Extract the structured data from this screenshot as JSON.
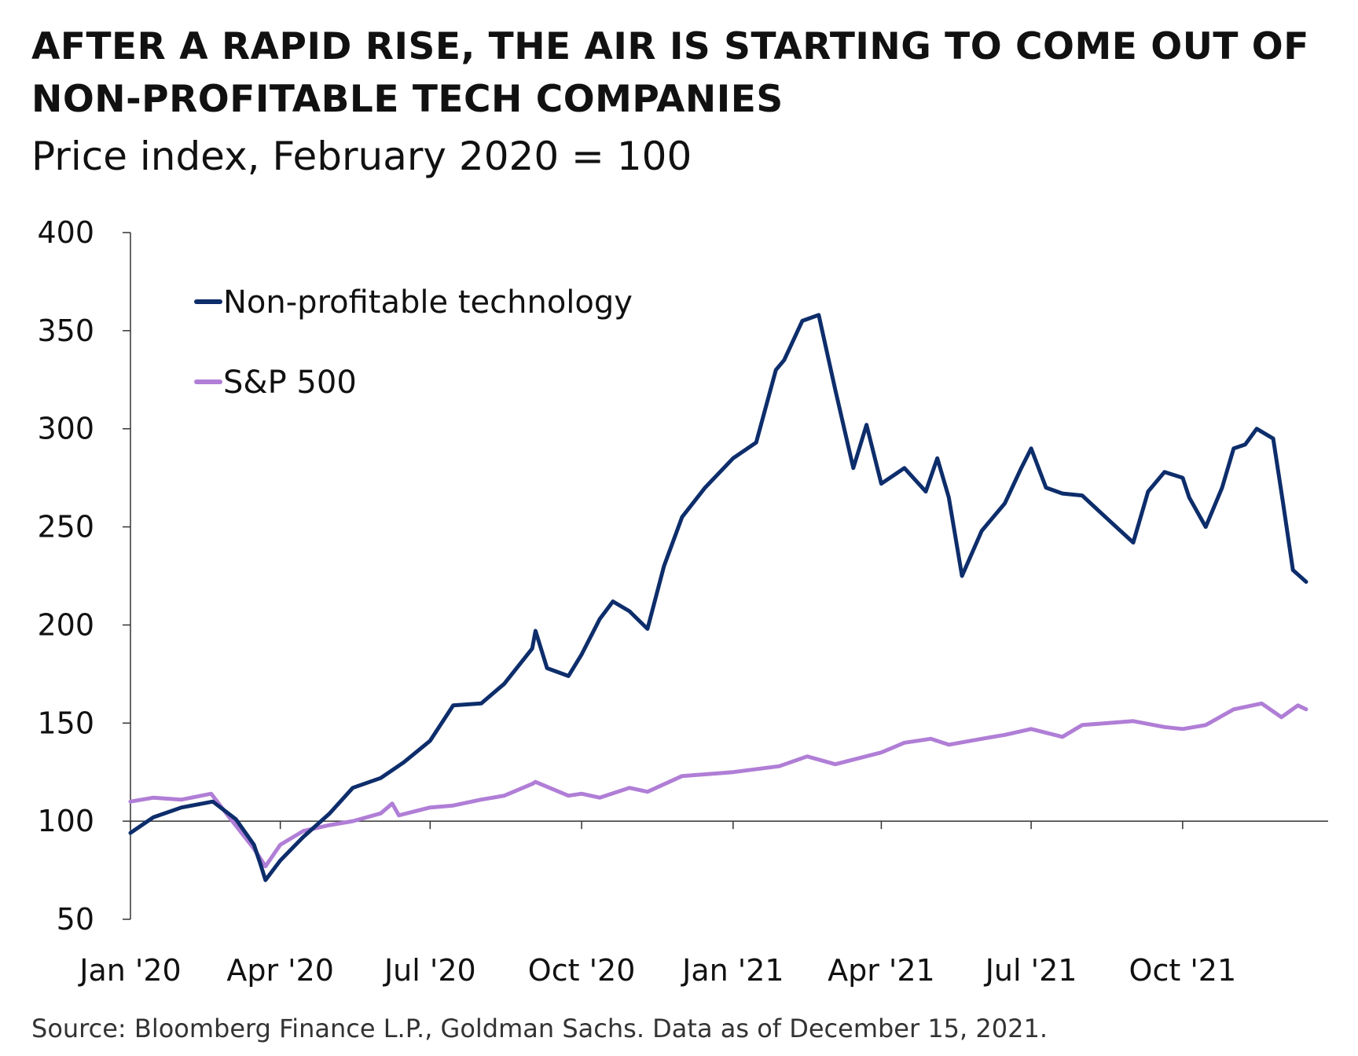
{
  "header": {
    "title": "AFTER A RAPID RISE, THE AIR IS STARTING TO COME OUT OF NON-PROFITABLE TECH COMPANIES",
    "subtitle": "Price index, February 2020 = 100"
  },
  "footer": {
    "source": "Source: Bloomberg Finance L.P., Goldman Sachs. Data as of December 15, 2021."
  },
  "colors": {
    "non_profitable": "#0d2d6b",
    "sp500": "#b07ed6",
    "axis": "#333333"
  },
  "chart_data": {
    "type": "line",
    "title": "AFTER A RAPID RISE, THE AIR IS STARTING TO COME OUT OF NON-PROFITABLE TECH COMPANIES",
    "subtitle": "Price index, February 2020 = 100",
    "xlabel": "",
    "ylabel": "",
    "ylim": [
      50,
      400
    ],
    "yticks": [
      50,
      100,
      150,
      200,
      250,
      300,
      350,
      400
    ],
    "xlim": [
      "2020-01-01",
      "2021-12-15"
    ],
    "xticks": [
      {
        "date": "2020-01-01",
        "label": "Jan '20"
      },
      {
        "date": "2020-04-01",
        "label": "Apr '20"
      },
      {
        "date": "2020-07-01",
        "label": "Jul '20"
      },
      {
        "date": "2020-10-01",
        "label": "Oct '20"
      },
      {
        "date": "2021-01-01",
        "label": "Jan '21"
      },
      {
        "date": "2021-04-01",
        "label": "Apr '21"
      },
      {
        "date": "2021-07-01",
        "label": "Jul '21"
      },
      {
        "date": "2021-10-01",
        "label": "Oct '21"
      }
    ],
    "grid": false,
    "legend": "top-left",
    "series": [
      {
        "name": "Non-profitable technology",
        "x": [
          "2020-01-01",
          "2020-01-15",
          "2020-02-01",
          "2020-02-20",
          "2020-03-05",
          "2020-03-16",
          "2020-03-20",
          "2020-03-23",
          "2020-04-01",
          "2020-04-15",
          "2020-05-01",
          "2020-05-15",
          "2020-06-01",
          "2020-06-15",
          "2020-07-01",
          "2020-07-15",
          "2020-08-01",
          "2020-08-15",
          "2020-09-01",
          "2020-09-03",
          "2020-09-10",
          "2020-09-23",
          "2020-10-01",
          "2020-10-12",
          "2020-10-20",
          "2020-10-30",
          "2020-11-10",
          "2020-11-20",
          "2020-12-01",
          "2020-12-15",
          "2021-01-01",
          "2021-01-15",
          "2021-01-27",
          "2021-02-01",
          "2021-02-12",
          "2021-02-22",
          "2021-03-04",
          "2021-03-15",
          "2021-03-23",
          "2021-04-01",
          "2021-04-15",
          "2021-04-28",
          "2021-05-05",
          "2021-05-12",
          "2021-05-20",
          "2021-06-01",
          "2021-06-15",
          "2021-06-25",
          "2021-07-01",
          "2021-07-10",
          "2021-07-20",
          "2021-08-01",
          "2021-08-19",
          "2021-09-01",
          "2021-09-10",
          "2021-09-20",
          "2021-10-01",
          "2021-10-05",
          "2021-10-15",
          "2021-10-25",
          "2021-11-01",
          "2021-11-08",
          "2021-11-15",
          "2021-11-25",
          "2021-12-01",
          "2021-12-07",
          "2021-12-15"
        ],
        "values": [
          94,
          102,
          107,
          110,
          101,
          88,
          78,
          70,
          80,
          92,
          104,
          117,
          122,
          130,
          141,
          159,
          160,
          170,
          188,
          197,
          178,
          174,
          185,
          203,
          212,
          207,
          198,
          230,
          255,
          270,
          285,
          293,
          330,
          335,
          355,
          358,
          320,
          280,
          302,
          272,
          280,
          268,
          285,
          265,
          225,
          248,
          262,
          280,
          290,
          270,
          267,
          266,
          252,
          242,
          268,
          278,
          275,
          265,
          250,
          270,
          290,
          292,
          300,
          295,
          262,
          228,
          222
        ]
      },
      {
        "name": "S&P 500",
        "x": [
          "2020-01-01",
          "2020-01-15",
          "2020-02-01",
          "2020-02-19",
          "2020-03-01",
          "2020-03-16",
          "2020-03-23",
          "2020-04-01",
          "2020-04-15",
          "2020-05-01",
          "2020-05-15",
          "2020-06-01",
          "2020-06-08",
          "2020-06-12",
          "2020-07-01",
          "2020-07-15",
          "2020-08-01",
          "2020-08-15",
          "2020-09-01",
          "2020-09-03",
          "2020-09-23",
          "2020-10-01",
          "2020-10-12",
          "2020-10-30",
          "2020-11-10",
          "2020-12-01",
          "2021-01-01",
          "2021-01-29",
          "2021-02-15",
          "2021-03-04",
          "2021-04-01",
          "2021-04-15",
          "2021-05-01",
          "2021-05-12",
          "2021-06-01",
          "2021-06-15",
          "2021-07-01",
          "2021-07-20",
          "2021-08-01",
          "2021-09-01",
          "2021-09-20",
          "2021-10-01",
          "2021-10-15",
          "2021-11-01",
          "2021-11-18",
          "2021-11-30",
          "2021-12-10",
          "2021-12-15"
        ],
        "values": [
          110,
          112,
          111,
          114,
          102,
          86,
          77,
          88,
          95,
          98,
          100,
          104,
          109,
          103,
          107,
          108,
          111,
          113,
          119,
          120,
          113,
          114,
          112,
          117,
          115,
          123,
          125,
          128,
          133,
          129,
          135,
          140,
          142,
          139,
          142,
          144,
          147,
          143,
          149,
          151,
          148,
          147,
          149,
          157,
          160,
          153,
          159,
          157
        ]
      }
    ]
  },
  "legend": {
    "items": [
      {
        "label": "Non-profitable technology"
      },
      {
        "label": "S&P 500"
      }
    ]
  }
}
